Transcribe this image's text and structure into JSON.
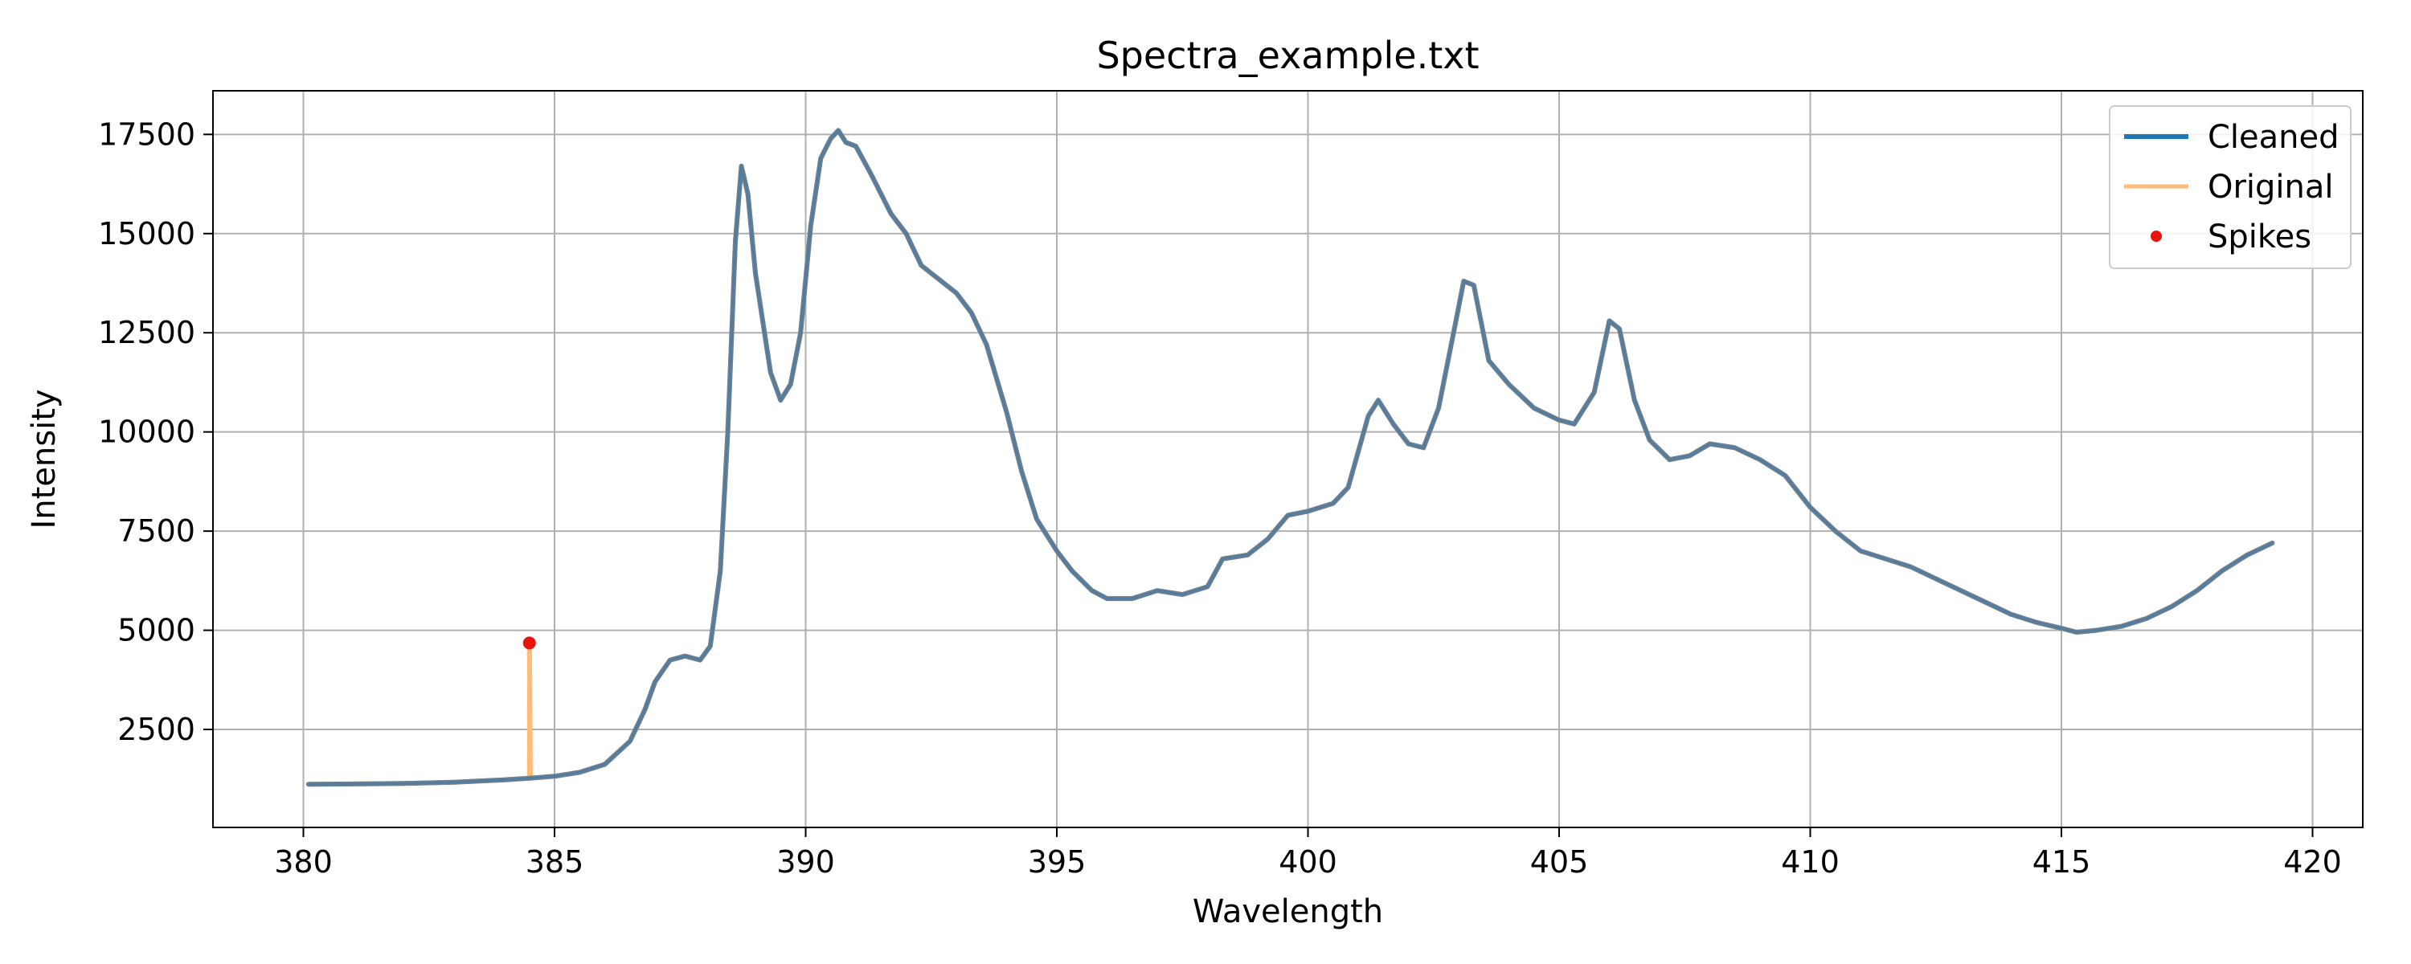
{
  "chart_data": {
    "type": "line",
    "title": "Spectra_example.txt",
    "xlabel": "Wavelength",
    "ylabel": "Intensity",
    "xlim": [
      378.2,
      421.0
    ],
    "ylim": [
      30,
      18600
    ],
    "xticks": [
      380,
      385,
      390,
      395,
      400,
      405,
      410,
      415,
      420
    ],
    "yticks": [
      2500,
      5000,
      7500,
      10000,
      12500,
      15000,
      17500
    ],
    "grid": true,
    "legend_position": "top-right",
    "series": [
      {
        "name": "Cleaned",
        "color": "#1f77b4",
        "points": [
          [
            380.1,
            1120
          ],
          [
            381.0,
            1125
          ],
          [
            382.0,
            1140
          ],
          [
            383.0,
            1170
          ],
          [
            384.0,
            1230
          ],
          [
            384.5,
            1270
          ],
          [
            385.0,
            1320
          ],
          [
            385.5,
            1420
          ],
          [
            386.0,
            1620
          ],
          [
            386.5,
            2200
          ],
          [
            386.8,
            3000
          ],
          [
            387.0,
            3700
          ],
          [
            387.3,
            4250
          ],
          [
            387.6,
            4350
          ],
          [
            387.9,
            4250
          ],
          [
            388.1,
            4600
          ],
          [
            388.3,
            6500
          ],
          [
            388.45,
            10000
          ],
          [
            388.6,
            14800
          ],
          [
            388.72,
            16700
          ],
          [
            388.85,
            16000
          ],
          [
            389.0,
            14000
          ],
          [
            389.3,
            11500
          ],
          [
            389.5,
            10800
          ],
          [
            389.7,
            11200
          ],
          [
            389.9,
            12500
          ],
          [
            390.1,
            15200
          ],
          [
            390.3,
            16900
          ],
          [
            390.5,
            17400
          ],
          [
            390.65,
            17600
          ],
          [
            390.8,
            17300
          ],
          [
            391.0,
            17200
          ],
          [
            391.3,
            16500
          ],
          [
            391.7,
            15500
          ],
          [
            392.0,
            15000
          ],
          [
            392.3,
            14200
          ],
          [
            392.7,
            13800
          ],
          [
            393.0,
            13500
          ],
          [
            393.3,
            13000
          ],
          [
            393.6,
            12200
          ],
          [
            394.0,
            10500
          ],
          [
            394.3,
            9000
          ],
          [
            394.6,
            7800
          ],
          [
            395.0,
            7000
          ],
          [
            395.3,
            6500
          ],
          [
            395.7,
            6000
          ],
          [
            396.0,
            5800
          ],
          [
            396.5,
            5800
          ],
          [
            397.0,
            6000
          ],
          [
            397.5,
            5900
          ],
          [
            398.0,
            6100
          ],
          [
            398.3,
            6800
          ],
          [
            398.8,
            6900
          ],
          [
            399.2,
            7300
          ],
          [
            399.6,
            7900
          ],
          [
            400.0,
            8000
          ],
          [
            400.5,
            8200
          ],
          [
            400.8,
            8600
          ],
          [
            401.2,
            10400
          ],
          [
            401.4,
            10800
          ],
          [
            401.7,
            10200
          ],
          [
            402.0,
            9700
          ],
          [
            402.3,
            9600
          ],
          [
            402.6,
            10600
          ],
          [
            402.9,
            12500
          ],
          [
            403.1,
            13800
          ],
          [
            403.3,
            13700
          ],
          [
            403.6,
            11800
          ],
          [
            404.0,
            11200
          ],
          [
            404.5,
            10600
          ],
          [
            405.0,
            10300
          ],
          [
            405.3,
            10200
          ],
          [
            405.7,
            11000
          ],
          [
            406.0,
            12800
          ],
          [
            406.2,
            12600
          ],
          [
            406.5,
            10800
          ],
          [
            406.8,
            9800
          ],
          [
            407.2,
            9300
          ],
          [
            407.6,
            9400
          ],
          [
            408.0,
            9700
          ],
          [
            408.5,
            9600
          ],
          [
            409.0,
            9300
          ],
          [
            409.5,
            8900
          ],
          [
            410.0,
            8100
          ],
          [
            410.5,
            7500
          ],
          [
            411.0,
            7000
          ],
          [
            411.5,
            6800
          ],
          [
            412.0,
            6600
          ],
          [
            412.5,
            6300
          ],
          [
            413.0,
            6000
          ],
          [
            413.5,
            5700
          ],
          [
            414.0,
            5400
          ],
          [
            414.5,
            5200
          ],
          [
            415.0,
            5050
          ],
          [
            415.3,
            4950
          ],
          [
            415.7,
            5000
          ],
          [
            416.2,
            5100
          ],
          [
            416.7,
            5300
          ],
          [
            417.2,
            5600
          ],
          [
            417.7,
            6000
          ],
          [
            418.2,
            6500
          ],
          [
            418.7,
            6900
          ],
          [
            419.2,
            7200
          ]
        ]
      },
      {
        "name": "Original",
        "color": "#ffbb78"
      },
      {
        "name": "Spikes",
        "color": "#e8140c",
        "points": [
          [
            384.5,
            4680
          ]
        ]
      }
    ],
    "original_spike": {
      "x": 384.5,
      "y_base": 1270,
      "y_peak": 4680
    }
  }
}
